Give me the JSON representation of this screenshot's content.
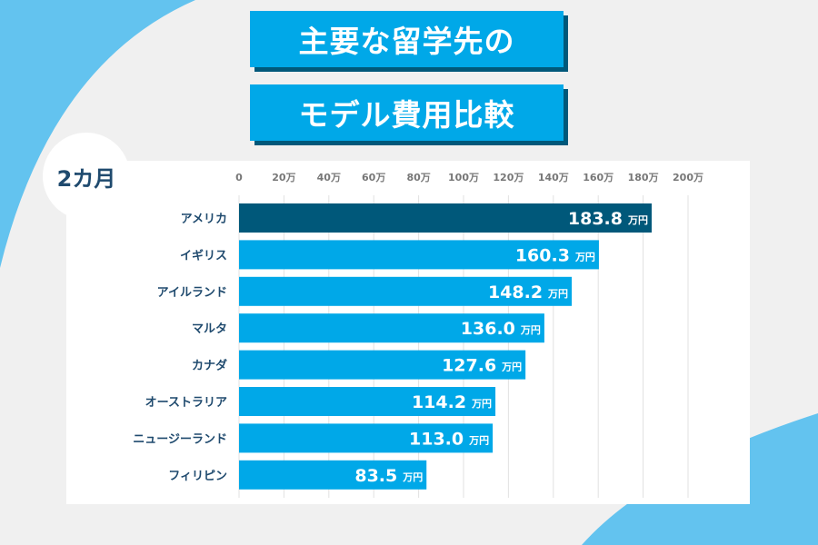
{
  "title_line1": "主要な留学先の",
  "title_line2": "モデル費用比較",
  "period_badge": "2カ月",
  "colors": {
    "highlight": "#00587a",
    "bar": "#00a8e8",
    "label": "#1f4a6e",
    "background_accent": "#63c3ef"
  },
  "chart_data": {
    "type": "bar",
    "orientation": "horizontal",
    "categories": [
      "アメリカ",
      "イギリス",
      "アイルランド",
      "マルタ",
      "カナダ",
      "オーストラリア",
      "ニュージーランド",
      "フィリピン"
    ],
    "values": [
      183.8,
      160.3,
      148.2,
      136.0,
      127.6,
      114.2,
      113.0,
      83.5
    ],
    "value_labels": [
      "183.8",
      "160.3",
      "148.2",
      "136.0",
      "127.6",
      "114.2",
      "113.0",
      "83.5"
    ],
    "value_unit": "万円",
    "xlim": [
      0,
      200
    ],
    "x_ticks": [
      "0",
      "20万",
      "40万",
      "60万",
      "80万",
      "100万",
      "120万",
      "140万",
      "160万",
      "180万",
      "200万"
    ],
    "grid": true
  }
}
